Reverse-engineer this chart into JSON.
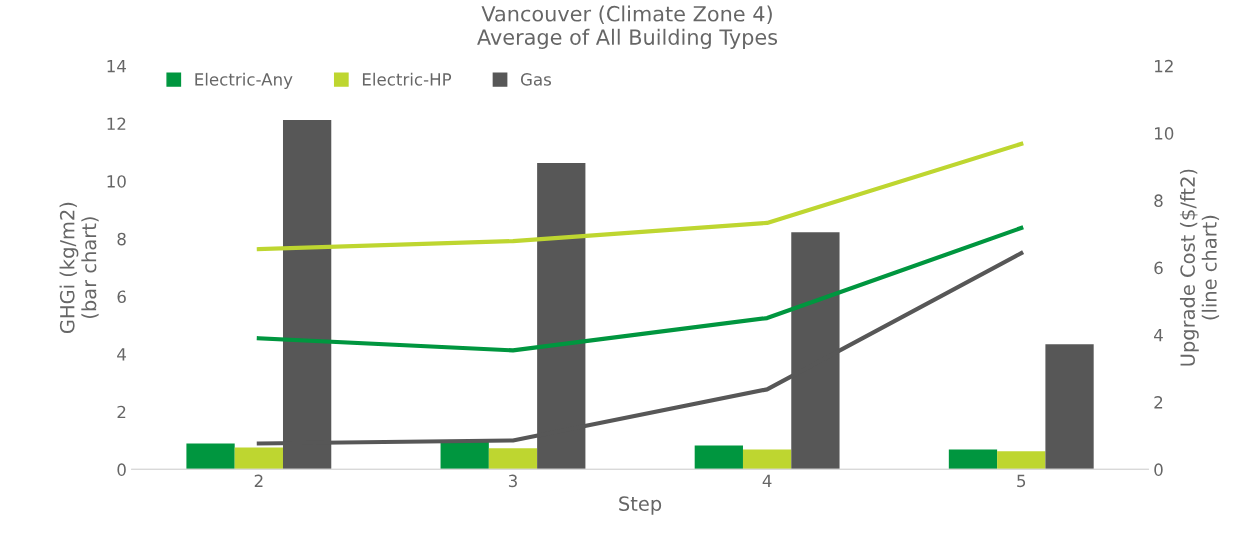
{
  "chart_data": {
    "type": "bar",
    "title": "Vancouver (Climate Zone 4)\nAverage of All Building Types",
    "xlabel": "Step",
    "ylabel": "GHGi (kg/m2)\n(bar chart)",
    "y2label": "Upgrade Cost ($/ft2)\n(line chart)",
    "categories": [
      "2",
      "3",
      "4",
      "5"
    ],
    "series": [
      {
        "name": "Electric-Any",
        "color": "#00963f",
        "values": [
          0.9,
          0.97,
          0.83,
          0.69
        ]
      },
      {
        "name": "Electric-HP",
        "color": "#bed630",
        "values": [
          0.76,
          0.73,
          0.69,
          0.63
        ]
      },
      {
        "name": "Gas",
        "color": "#575757",
        "values": [
          12.12,
          10.63,
          8.23,
          4.34
        ]
      },
      {
        "type": "line",
        "axis": "y2",
        "color": "#00963f",
        "values": [
          3.9,
          3.54,
          4.5,
          7.18
        ]
      },
      {
        "type": "line",
        "axis": "y2",
        "color": "#bed630",
        "values": [
          6.55,
          6.79,
          7.33,
          9.68
        ]
      },
      {
        "type": "line",
        "axis": "y2",
        "color": "#575757",
        "values": [
          0.77,
          0.86,
          2.38,
          6.43
        ]
      }
    ],
    "ylim": [
      0,
      14
    ],
    "yticks": [
      0,
      2,
      4,
      6,
      8,
      10,
      12,
      14
    ],
    "y2lim": [
      0,
      12
    ],
    "y2ticks": [
      0,
      2,
      4,
      6,
      8,
      10,
      12
    ],
    "legend": "top left",
    "grid": false
  }
}
